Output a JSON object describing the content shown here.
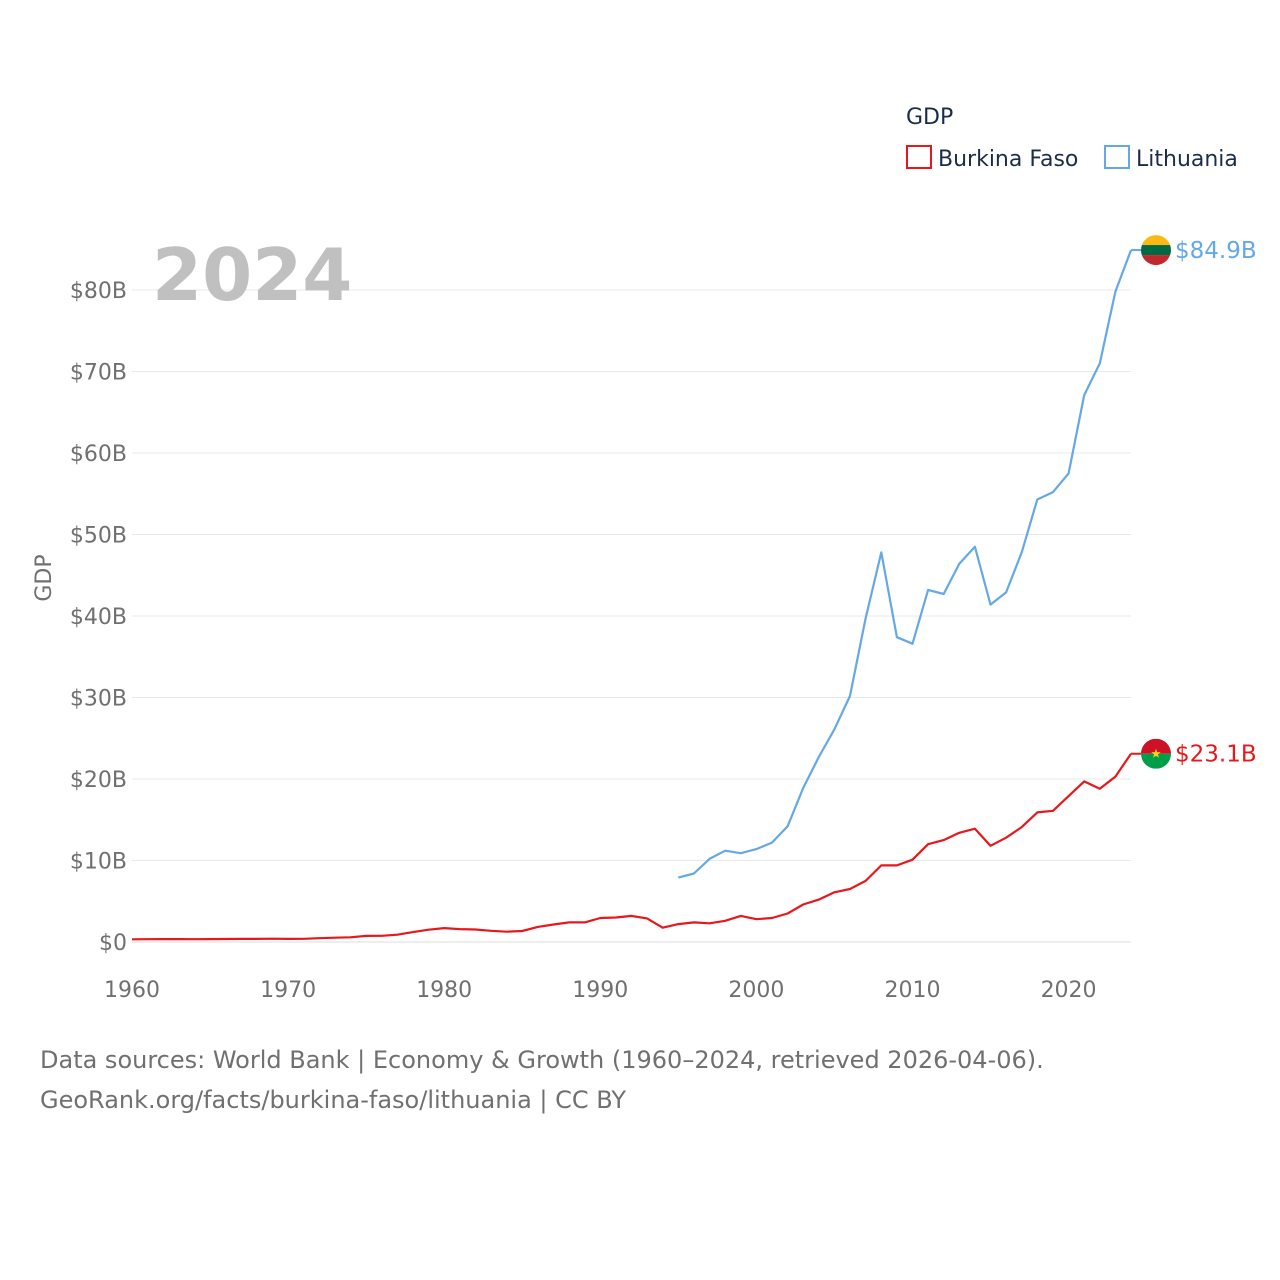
{
  "chart_data": {
    "type": "line",
    "title": "",
    "xlabel": "",
    "ylabel": "GDP",
    "year_label": "2024",
    "legend": {
      "title": "GDP",
      "placement": "top-right",
      "entries": [
        "Burkina Faso",
        "Lithuania"
      ]
    },
    "xlim": [
      1960,
      2024
    ],
    "ylim": [
      0,
      85
    ],
    "x_ticks": [
      "1960",
      "1970",
      "1980",
      "1990",
      "2000",
      "2010",
      "2020"
    ],
    "x_tick_values": [
      1960,
      1970,
      1980,
      1990,
      2000,
      2010,
      2020
    ],
    "y_ticks": [
      "$0",
      "$10B",
      "$20B",
      "$30B",
      "$40B",
      "$50B",
      "$60B",
      "$70B",
      "$80B"
    ],
    "y_tick_values": [
      0,
      10,
      20,
      30,
      40,
      50,
      60,
      70,
      80
    ],
    "grid": true,
    "units": "billion USD",
    "series": [
      {
        "name": "Burkina Faso",
        "color": "#e8171b",
        "end_label": "$23.1B",
        "flag": "burkina-faso-flag",
        "x": [
          1960,
          1961,
          1962,
          1963,
          1964,
          1965,
          1966,
          1967,
          1968,
          1969,
          1970,
          1971,
          1972,
          1973,
          1974,
          1975,
          1976,
          1977,
          1978,
          1979,
          1980,
          1981,
          1982,
          1983,
          1984,
          1985,
          1986,
          1987,
          1988,
          1989,
          1990,
          1991,
          1992,
          1993,
          1994,
          1995,
          1996,
          1997,
          1998,
          1999,
          2000,
          2001,
          2002,
          2003,
          2004,
          2005,
          2006,
          2007,
          2008,
          2009,
          2010,
          2011,
          2012,
          2013,
          2014,
          2015,
          2016,
          2017,
          2018,
          2019,
          2020,
          2021,
          2022,
          2023,
          2024
        ],
        "values": [
          0.33,
          0.34,
          0.35,
          0.35,
          0.34,
          0.36,
          0.37,
          0.38,
          0.38,
          0.4,
          0.38,
          0.39,
          0.47,
          0.53,
          0.58,
          0.75,
          0.76,
          0.9,
          1.22,
          1.51,
          1.71,
          1.58,
          1.53,
          1.38,
          1.26,
          1.35,
          1.85,
          2.15,
          2.4,
          2.4,
          2.95,
          3.0,
          3.2,
          2.9,
          1.75,
          2.2,
          2.4,
          2.3,
          2.6,
          3.2,
          2.8,
          2.95,
          3.5,
          4.6,
          5.2,
          6.1,
          6.5,
          7.5,
          9.4,
          9.4,
          10.1,
          12.0,
          12.5,
          13.4,
          13.9,
          11.8,
          12.8,
          14.1,
          15.9,
          16.1,
          17.9,
          19.7,
          18.8,
          20.3,
          23.1
        ]
      },
      {
        "name": "Lithuania",
        "color": "#64a8e6",
        "end_label": "$84.9B",
        "flag": "lithuania-flag",
        "x": [
          1995,
          1996,
          1997,
          1998,
          1999,
          2000,
          2001,
          2002,
          2003,
          2004,
          2005,
          2006,
          2007,
          2008,
          2009,
          2010,
          2011,
          2012,
          2013,
          2014,
          2015,
          2016,
          2017,
          2018,
          2019,
          2020,
          2021,
          2022,
          2023,
          2024
        ],
        "values": [
          7.9,
          8.4,
          10.2,
          11.2,
          10.9,
          11.4,
          12.2,
          14.2,
          18.9,
          22.7,
          26.1,
          30.2,
          39.7,
          47.8,
          37.4,
          36.6,
          43.2,
          42.7,
          46.4,
          48.5,
          41.4,
          42.9,
          47.8,
          54.3,
          55.2,
          57.5,
          67.1,
          71.0,
          79.8,
          84.9
        ]
      }
    ]
  },
  "footer": {
    "line1": "Data sources: World Bank | Economy & Growth (1960–2024, retrieved 2026-04-06).",
    "line2": "GeoRank.org/facts/burkina-faso/lithuania | CC BY"
  }
}
